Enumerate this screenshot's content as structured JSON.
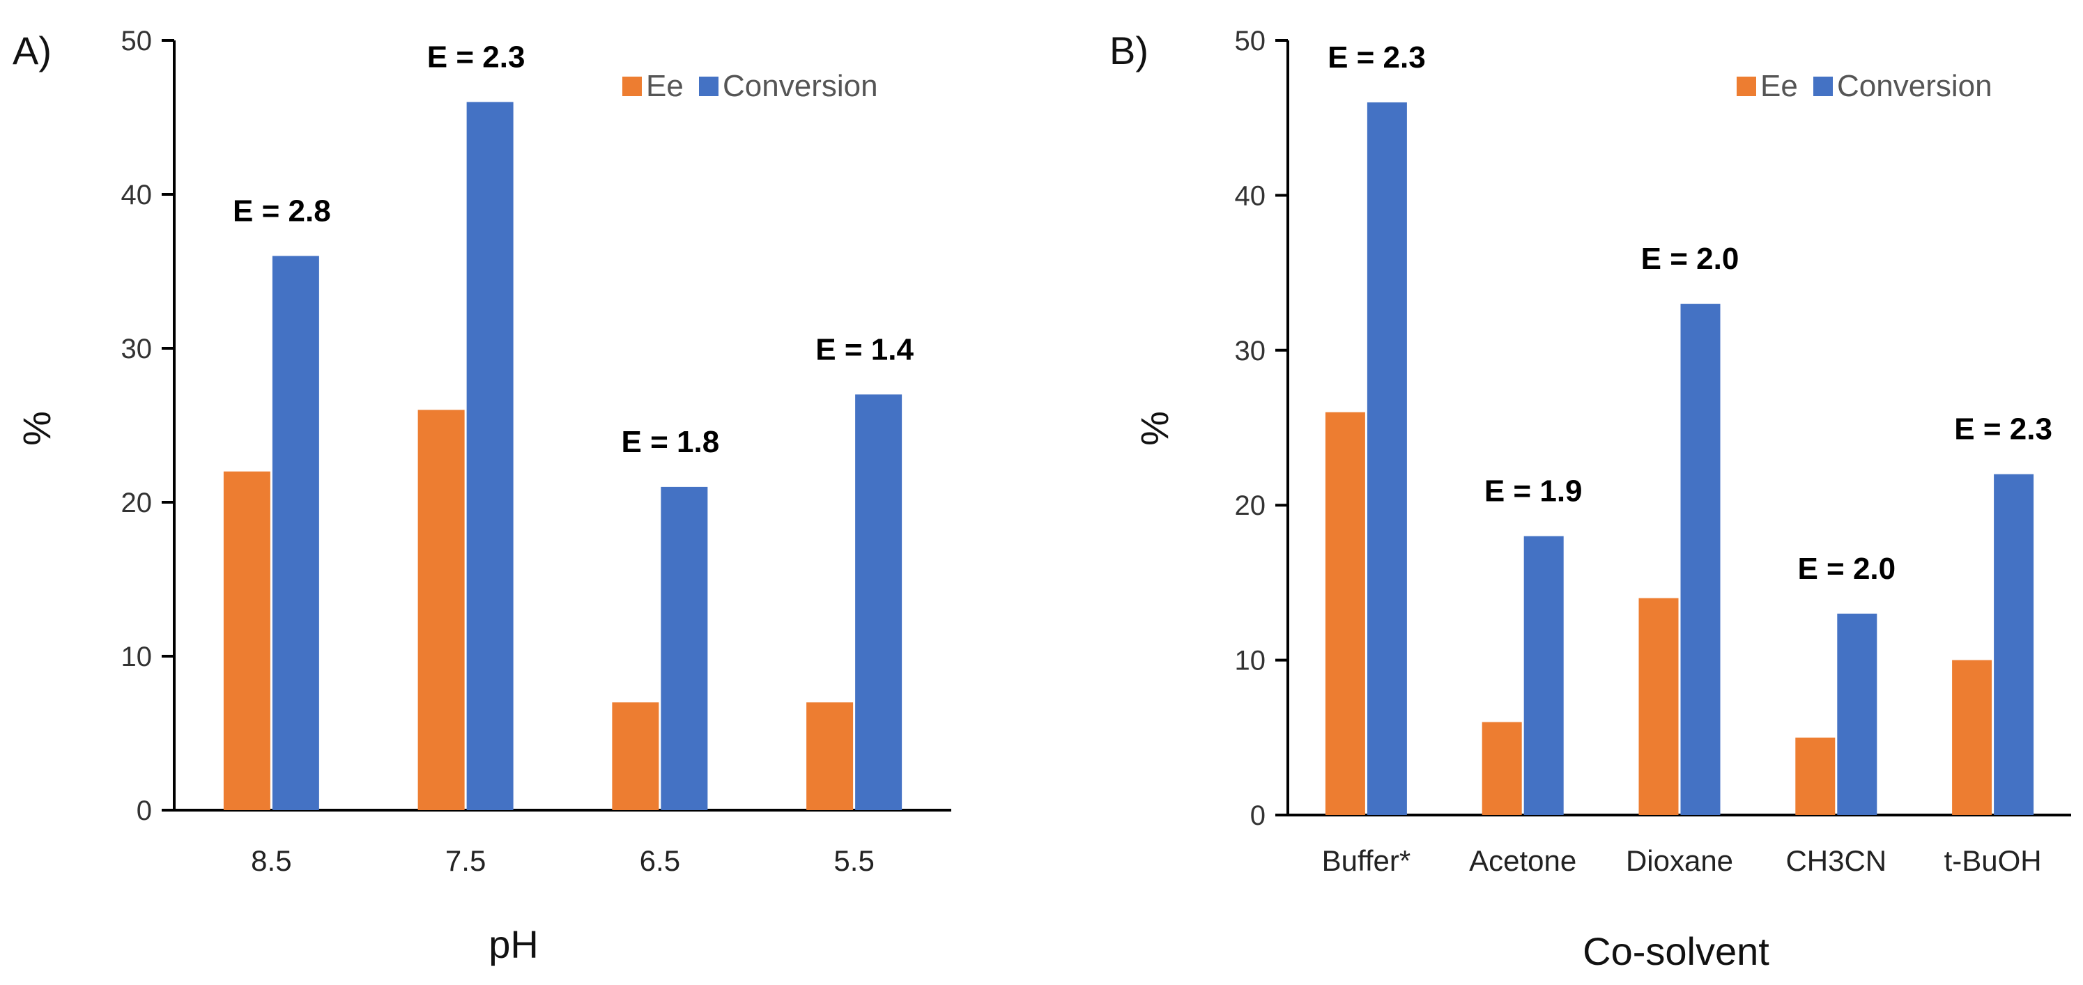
{
  "colors": {
    "ee": "#ED7D31",
    "conversion": "#4472C4"
  },
  "chart_data": [
    {
      "type": "bar",
      "panel_label": "A)",
      "title": "",
      "xlabel": "pH",
      "ylabel": "%",
      "ylim": [
        0,
        50
      ],
      "yticks": [
        0,
        10,
        20,
        30,
        40,
        50
      ],
      "grid": false,
      "legend": "top-right",
      "categories": [
        "8.5",
        "7.5",
        "6.5",
        "5.5"
      ],
      "series": [
        {
          "name": "Ee",
          "values": [
            22,
            26,
            7,
            7
          ]
        },
        {
          "name": "Conversion",
          "values": [
            36,
            46,
            21,
            27
          ]
        }
      ],
      "annotations": [
        "E = 2.8",
        "E = 2.3",
        "E = 1.8",
        "E = 1.4"
      ]
    },
    {
      "type": "bar",
      "panel_label": "B)",
      "title": "",
      "xlabel": "Co-solvent",
      "ylabel": "%",
      "ylim": [
        0,
        50
      ],
      "yticks": [
        0,
        10,
        20,
        30,
        40,
        50
      ],
      "grid": false,
      "legend": "top-right",
      "categories": [
        "Buffer*",
        "Acetone",
        "Dioxane",
        "CH3CN",
        "t-BuOH"
      ],
      "series": [
        {
          "name": "Ee",
          "values": [
            26,
            6,
            14,
            5,
            10
          ]
        },
        {
          "name": "Conversion",
          "values": [
            46,
            18,
            33,
            13,
            22
          ]
        }
      ],
      "annotations": [
        "E = 2.3",
        "E = 1.9",
        "E = 2.0",
        "E = 2.0",
        "E = 2.3"
      ]
    }
  ]
}
